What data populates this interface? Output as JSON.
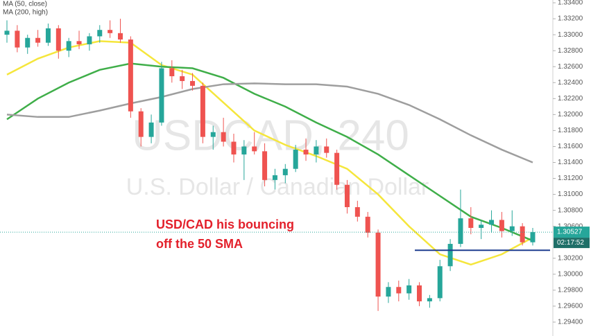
{
  "chart_data": {
    "type": "candlestick",
    "watermark": "USDCAD, 240",
    "watermark_subtitle": "U.S. Dollar / Canadian Dollar",
    "annotation": [
      "USD/CAD his bouncing",
      "off the 50 SMA"
    ],
    "up_color": "#26a69a",
    "down_color": "#ef5350",
    "open": [
      1.33,
      1.3305,
      1.3284,
      1.3296,
      1.329,
      1.3308,
      1.328,
      1.3292,
      1.3288,
      1.3298,
      1.3306,
      1.3302,
      1.3294,
      1.3204,
      1.3172,
      1.319,
      1.3258,
      1.3248,
      1.3242,
      1.3236,
      1.3172,
      1.3178,
      1.3166,
      1.315,
      1.316,
      1.3154,
      1.3118,
      1.3124,
      1.3132,
      1.3156,
      1.315,
      1.316,
      1.3152,
      1.3112,
      1.3084,
      1.3072,
      1.3052,
      1.2972,
      1.2984,
      1.2976,
      1.2986,
      1.2966,
      1.297,
      1.301,
      1.3038,
      1.307,
      1.3058,
      1.3062,
      1.3068,
      1.3054,
      1.306,
      1.304
    ],
    "high": [
      1.3318,
      1.3312,
      1.33,
      1.3306,
      1.3314,
      1.3312,
      1.3296,
      1.3305,
      1.3302,
      1.3312,
      1.3318,
      1.332,
      1.3298,
      1.3208,
      1.32,
      1.3266,
      1.3268,
      1.3256,
      1.3252,
      1.324,
      1.3186,
      1.3196,
      1.3176,
      1.3168,
      1.3178,
      1.3164,
      1.3132,
      1.3138,
      1.3162,
      1.317,
      1.3168,
      1.317,
      1.3156,
      1.3118,
      1.3092,
      1.3078,
      1.3056,
      1.299,
      1.2992,
      1.2994,
      1.299,
      1.2974,
      1.3018,
      1.3044,
      1.3106,
      1.3084,
      1.3068,
      1.308,
      1.3078,
      1.308,
      1.3064,
      1.3058
    ],
    "low": [
      1.329,
      1.3278,
      1.3276,
      1.3285,
      1.3286,
      1.327,
      1.3272,
      1.3282,
      1.328,
      1.329,
      1.3296,
      1.329,
      1.3196,
      1.316,
      1.3164,
      1.3186,
      1.324,
      1.3232,
      1.323,
      1.3164,
      1.3156,
      1.316,
      1.314,
      1.3118,
      1.315,
      1.311,
      1.3106,
      1.3114,
      1.3128,
      1.3142,
      1.314,
      1.3146,
      1.3106,
      1.3076,
      1.3066,
      1.3046,
      1.2954,
      1.2964,
      1.2966,
      1.2968,
      1.296,
      1.2958,
      1.2966,
      1.3004,
      1.3034,
      1.305,
      1.3044,
      1.3052,
      1.3046,
      1.3048,
      1.3036,
      1.3036
    ],
    "close": [
      1.3305,
      1.3284,
      1.3296,
      1.329,
      1.3308,
      1.328,
      1.3292,
      1.3288,
      1.3298,
      1.3306,
      1.3302,
      1.3294,
      1.3204,
      1.3172,
      1.319,
      1.3258,
      1.3248,
      1.3242,
      1.3236,
      1.3172,
      1.3178,
      1.3166,
      1.315,
      1.316,
      1.3154,
      1.3118,
      1.3124,
      1.3132,
      1.3156,
      1.315,
      1.316,
      1.3152,
      1.3112,
      1.3084,
      1.3072,
      1.3052,
      1.2972,
      1.2984,
      1.2976,
      1.2986,
      1.2966,
      1.297,
      1.301,
      1.3038,
      1.307,
      1.3058,
      1.3062,
      1.3068,
      1.3054,
      1.306,
      1.304,
      1.30527
    ],
    "series": [
      {
        "name": "MA (50, close)",
        "color": "#f5e63c",
        "x": [
          0,
          3,
          6,
          9,
          12,
          15,
          18,
          21,
          24,
          27,
          30,
          33,
          36,
          39,
          42,
          45,
          48,
          51
        ],
        "values": [
          1.325,
          1.327,
          1.3284,
          1.3292,
          1.329,
          1.3262,
          1.325,
          1.3215,
          1.318,
          1.3162,
          1.3148,
          1.3132,
          1.31,
          1.306,
          1.3025,
          1.3012,
          1.3025,
          1.3046
        ]
      },
      {
        "color": "#3fae49",
        "x": [
          0,
          3,
          6,
          9,
          12,
          15,
          18,
          21,
          24,
          27,
          30,
          33,
          36,
          39,
          42,
          45,
          48,
          51
        ],
        "values": [
          1.3194,
          1.322,
          1.324,
          1.3256,
          1.3264,
          1.326,
          1.3258,
          1.3246,
          1.3226,
          1.321,
          1.319,
          1.3172,
          1.315,
          1.3124,
          1.3098,
          1.3072,
          1.3058,
          1.3042
        ]
      },
      {
        "name": "MA (200, high)",
        "color": "#9e9e9e",
        "x": [
          0,
          3,
          6,
          9,
          12,
          15,
          18,
          21,
          24,
          27,
          30,
          33,
          36,
          39,
          42,
          45,
          48,
          51
        ],
        "values": [
          1.32,
          1.3197,
          1.3197,
          1.3205,
          1.3214,
          1.3222,
          1.3232,
          1.3238,
          1.3239,
          1.3238,
          1.3238,
          1.3235,
          1.3226,
          1.3212,
          1.3194,
          1.3174,
          1.3156,
          1.314
        ]
      }
    ],
    "support_line": {
      "value": 1.303,
      "color": "#1d3c8f"
    },
    "last_price": {
      "value": 1.30527,
      "label": "1.30527"
    },
    "countdown": "02:17:52",
    "ylim": [
      1.29226,
      1.33435
    ],
    "yticks": [
      {
        "value": 1.334,
        "label": "1.33400"
      },
      {
        "value": 1.332,
        "label": "1.33200"
      },
      {
        "value": 1.33,
        "label": "1.33000"
      },
      {
        "value": 1.328,
        "label": "1.32800"
      },
      {
        "value": 1.326,
        "label": "1.32600"
      },
      {
        "value": 1.324,
        "label": "1.32400"
      },
      {
        "value": 1.322,
        "label": "1.32200"
      },
      {
        "value": 1.32,
        "label": "1.32000"
      },
      {
        "value": 1.318,
        "label": "1.31800"
      },
      {
        "value": 1.316,
        "label": "1.31600"
      },
      {
        "value": 1.314,
        "label": "1.31400"
      },
      {
        "value": 1.312,
        "label": "1.31200"
      },
      {
        "value": 1.31,
        "label": "1.31000"
      },
      {
        "value": 1.308,
        "label": "1.30800"
      },
      {
        "value": 1.306,
        "label": "1.30600"
      },
      {
        "value": 1.302,
        "label": "1.30200"
      },
      {
        "value": 1.3,
        "label": "1.30000"
      },
      {
        "value": 1.298,
        "label": "1.29800"
      },
      {
        "value": 1.296,
        "label": "1.29600"
      },
      {
        "value": 1.294,
        "label": "1.29400"
      }
    ],
    "grid": false
  }
}
